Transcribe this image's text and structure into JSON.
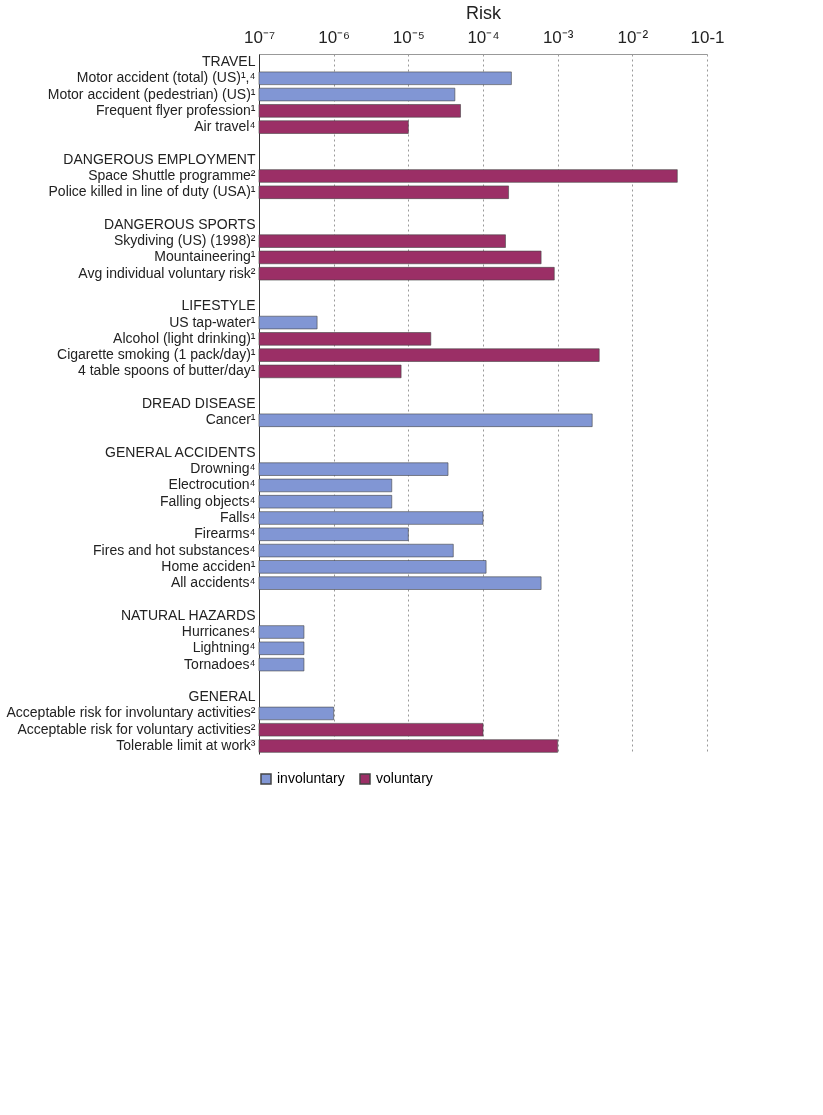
{
  "chart_data": {
    "type": "bar",
    "orientation": "horizontal",
    "log": "x",
    "xlabel": "Risk",
    "xlim": [
      1e-07,
      0.1
    ],
    "xticks": [
      {
        "value": 1e-07,
        "label": "10⁻⁷"
      },
      {
        "value": 1e-06,
        "label": "10⁻⁶"
      },
      {
        "value": 1e-05,
        "label": "10⁻⁵"
      },
      {
        "value": 0.0001,
        "label": "10⁻⁴"
      },
      {
        "value": 0.001,
        "label": "10⁻³"
      },
      {
        "value": 0.01,
        "label": "10⁻²"
      },
      {
        "value": 0.1,
        "label": "10-1"
      }
    ],
    "grid": "x",
    "legend": "bottom",
    "categories": [
      "TRAVEL",
      "Motor accident (total) (US)¹,⁴",
      "Motor accident (pedestrian) (US)¹",
      "Frequent flyer profession¹",
      "Air travel⁴",
      null,
      "DANGEROUS EMPLOYMENT",
      "Space Shuttle programme²",
      "Police killed in line of duty (USA)¹",
      null,
      "DANGEROUS SPORTS",
      "Skydiving (US) (1998)²",
      "Mountaineering¹",
      "Avg individual voluntary risk²",
      null,
      "LIFESTYLE",
      "US tap-water¹",
      "Alcohol (light drinking)¹",
      "Cigarette smoking (1 pack/day)¹",
      "4 table spoons of butter/day¹",
      null,
      "DREAD DISEASE",
      "Cancer¹",
      null,
      "GENERAL ACCIDENTS",
      "Drowning⁴",
      "Electrocution⁴",
      "Falling objects⁴",
      "Falls⁴",
      "Firearms⁴",
      "Fires and hot substances⁴",
      "Home acciden¹",
      "All accidents⁴",
      null,
      "NATURAL HAZARDS",
      "Hurricanes⁴",
      "Lightning⁴",
      "Tornadoes⁴",
      null,
      "GENERAL",
      "Acceptable risk for involuntary activities²",
      "Acceptable risk for voluntary activities²",
      "Tolerable limit at work³"
    ],
    "series": [
      {
        "name": "involuntary",
        "color": "#8196d4",
        "values": [
          null,
          0.00024,
          4.2e-05,
          null,
          null,
          null,
          null,
          null,
          null,
          null,
          null,
          null,
          null,
          null,
          null,
          null,
          6e-07,
          null,
          null,
          null,
          null,
          null,
          0.0029,
          null,
          null,
          3.4e-05,
          6e-06,
          6e-06,
          0.0001,
          1e-05,
          4e-05,
          0.00011,
          0.0006,
          null,
          null,
          4e-07,
          4e-07,
          4e-07,
          null,
          null,
          1e-06,
          null,
          null
        ]
      },
      {
        "name": "voluntary",
        "color": "#9b2f66",
        "values": [
          null,
          null,
          null,
          5e-05,
          1e-05,
          null,
          null,
          0.04,
          0.00022,
          null,
          null,
          0.0002,
          0.0006,
          0.0009,
          null,
          null,
          null,
          2e-05,
          0.0036,
          8e-06,
          null,
          null,
          null,
          null,
          null,
          null,
          null,
          null,
          null,
          null,
          null,
          null,
          null,
          null,
          null,
          null,
          null,
          null,
          null,
          null,
          null,
          0.0001,
          0.001
        ]
      }
    ]
  }
}
